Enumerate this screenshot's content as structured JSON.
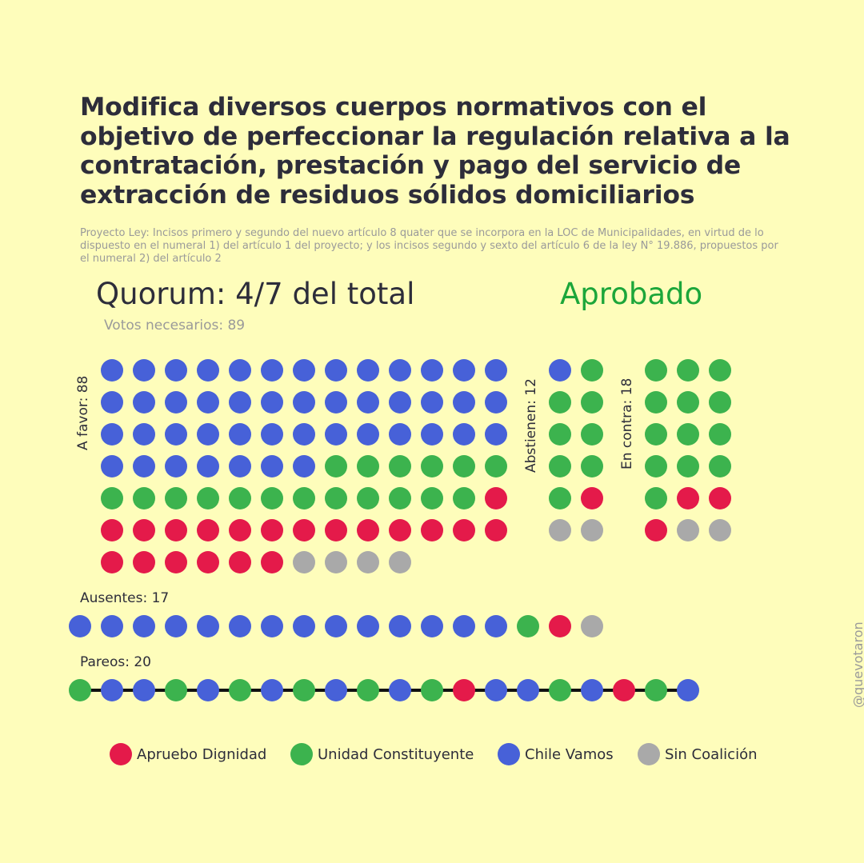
{
  "title": "Modifica diversos cuerpos normativos con el objetivo de perfeccionar la regulación relativa a la contratación, prestación y pago del servicio de extracción de residuos sólidos domiciliarios",
  "subtitle": "Proyecto Ley: Incisos primero y segundo del nuevo artículo 8 quater que se incorpora en la LOC de Municipalidades, en virtud de lo dispuesto en el numeral 1) del artículo 1 del proyecto; y los incisos segundo y sexto del artículo 6 de la ley N° 19.886, propuestos por el numeral 2) del artículo 2",
  "quorum": "Quorum: 4/7 del total",
  "status": "Aprobado",
  "votes_needed": "Votos necesarios: 89",
  "handle": "@quevotaron",
  "colors": {
    "Apruebo Dignidad": "#e41a4a",
    "Unidad Constituyente": "#3cb34e",
    "Chile Vamos": "#4761d8",
    "Sin Coalición": "#a9a9a9",
    "status": "#1ca63a",
    "background": "#fefdbb"
  },
  "chart_data": {
    "type": "waffle",
    "groups": [
      {
        "key": "a_favor",
        "label": "A favor: 88",
        "total": 88,
        "counts": {
          "Chile Vamos": 46,
          "Unidad Constituyente": 18,
          "Apruebo Dignidad": 20,
          "Sin Coalición": 4
        }
      },
      {
        "key": "abstienen",
        "label": "Abstienen: 12",
        "total": 12,
        "counts": {
          "Unidad Constituyente": 8,
          "Apruebo Dignidad": 1,
          "Chile Vamos": 1,
          "Sin Coalición": 2
        }
      },
      {
        "key": "en_contra",
        "label": "En contra: 18",
        "total": 18,
        "counts": {
          "Unidad Constituyente": 13,
          "Apruebo Dignidad": 3,
          "Sin Coalición": 2
        }
      },
      {
        "key": "ausentes",
        "label": "Ausentes: 17",
        "total": 17,
        "counts": {
          "Chile Vamos": 14,
          "Unidad Constituyente": 1,
          "Apruebo Dignidad": 1,
          "Sin Coalición": 1
        }
      },
      {
        "key": "pareos",
        "label": "Pareos: 20",
        "total": 20,
        "sequence": [
          "Unidad Constituyente",
          "Chile Vamos",
          "Chile Vamos",
          "Unidad Constituyente",
          "Chile Vamos",
          "Unidad Constituyente",
          "Chile Vamos",
          "Unidad Constituyente",
          "Chile Vamos",
          "Unidad Constituyente",
          "Chile Vamos",
          "Unidad Constituyente",
          "Apruebo Dignidad",
          "Chile Vamos",
          "Chile Vamos",
          "Unidad Constituyente",
          "Chile Vamos",
          "Apruebo Dignidad",
          "Unidad Constituyente",
          "Chile Vamos"
        ]
      }
    ],
    "legend": [
      "Apruebo Dignidad",
      "Unidad Constituyente",
      "Chile Vamos",
      "Sin Coalición"
    ]
  }
}
